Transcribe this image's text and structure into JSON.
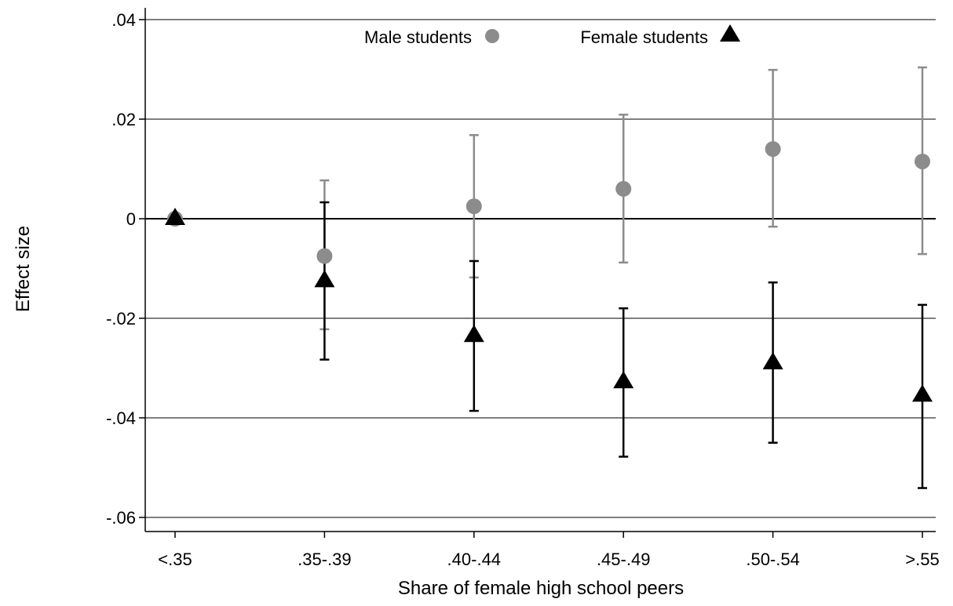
{
  "chart_data": {
    "type": "scatter",
    "title": "",
    "xlabel": "Share of female high school peers",
    "ylabel": "Effect size",
    "categories": [
      "<.35",
      ".35-.39",
      ".40-.44",
      ".45-.49",
      ".50-.54",
      ">.55"
    ],
    "ylim": [
      -0.062,
      0.042
    ],
    "yticks": [
      0.04,
      0.02,
      0,
      -0.02,
      -0.04,
      -0.06
    ],
    "ytick_labels": [
      ".04",
      ".02",
      "0",
      "-.02",
      "-.04",
      "-.06"
    ],
    "grid": true,
    "legend_position": "top-center",
    "series": [
      {
        "name": "Male students",
        "marker": "circle",
        "color": "#8c8c8c",
        "values": [
          0,
          -0.0075,
          0.0025,
          0.006,
          0.014,
          0.0115
        ],
        "ci_low": [
          null,
          -0.0222,
          -0.0118,
          -0.0088,
          -0.0016,
          -0.0071
        ],
        "ci_high": [
          null,
          0.0077,
          0.0168,
          0.0209,
          0.0299,
          0.0304
        ]
      },
      {
        "name": "Female students",
        "marker": "triangle",
        "color": "#000000",
        "values": [
          0,
          -0.0125,
          -0.0235,
          -0.0328,
          -0.029,
          -0.0355
        ],
        "ci_low": [
          null,
          -0.0283,
          -0.0386,
          -0.0478,
          -0.045,
          -0.0541
        ],
        "ci_high": [
          null,
          0.0033,
          -0.0085,
          -0.018,
          -0.0128,
          -0.0173
        ]
      }
    ]
  }
}
